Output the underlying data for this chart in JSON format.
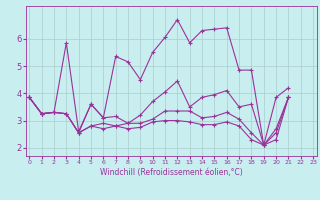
{
  "xlabel": "Windchill (Refroidissement éolien,°C)",
  "bg_color": "#c8eef0",
  "line_color": "#993399",
  "grid_color": "#aacccc",
  "x_ticks": [
    0,
    1,
    2,
    3,
    4,
    5,
    6,
    7,
    8,
    9,
    10,
    11,
    12,
    13,
    14,
    15,
    16,
    17,
    18,
    19,
    20,
    21,
    22,
    23
  ],
  "y_ticks": [
    2,
    3,
    4,
    5,
    6
  ],
  "ylim": [
    1.7,
    7.2
  ],
  "xlim": [
    -0.3,
    23.3
  ],
  "series": [
    [
      3.85,
      3.25,
      3.3,
      5.85,
      2.6,
      3.6,
      3.1,
      5.35,
      5.15,
      4.5,
      5.5,
      6.05,
      6.7,
      5.85,
      6.3,
      6.35,
      6.4,
      4.85,
      4.85,
      2.1,
      3.85,
      4.2,
      null,
      null
    ],
    [
      3.85,
      3.25,
      3.3,
      3.25,
      2.55,
      3.6,
      3.1,
      3.15,
      2.9,
      3.2,
      3.7,
      4.05,
      4.45,
      3.5,
      3.85,
      3.95,
      4.1,
      3.5,
      3.6,
      2.1,
      2.7,
      3.85,
      null,
      null
    ],
    [
      3.85,
      3.25,
      3.3,
      3.25,
      2.55,
      2.8,
      2.9,
      2.8,
      2.9,
      2.9,
      3.05,
      3.35,
      3.35,
      3.35,
      3.1,
      3.15,
      3.3,
      3.05,
      2.55,
      2.1,
      2.55,
      3.85,
      null,
      null
    ],
    [
      3.85,
      3.25,
      3.3,
      3.25,
      2.55,
      2.8,
      2.7,
      2.8,
      2.7,
      2.75,
      2.95,
      3.0,
      3.0,
      2.95,
      2.85,
      2.85,
      2.95,
      2.8,
      2.3,
      2.1,
      2.3,
      3.85,
      null,
      null
    ]
  ],
  "xlabel_fontsize": 5.5,
  "xtick_fontsize": 4.5,
  "ytick_fontsize": 6.0,
  "linewidth": 0.8,
  "markersize": 3.0
}
